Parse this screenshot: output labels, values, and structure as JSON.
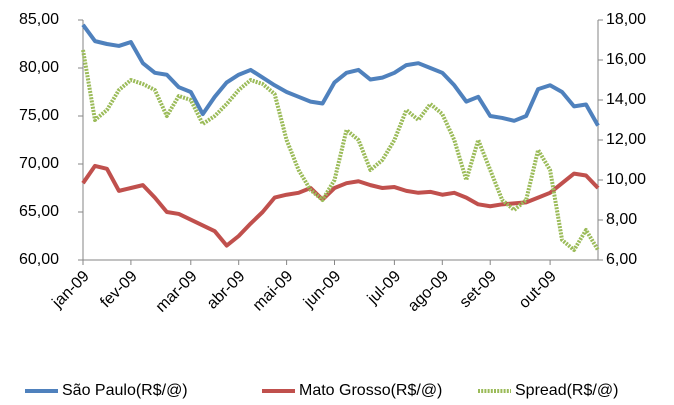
{
  "chart_data": {
    "type": "line",
    "categories": [
      "jan-09",
      null,
      null,
      null,
      "fev-09",
      null,
      null,
      null,
      null,
      "mar-09",
      null,
      null,
      null,
      "abr-09",
      null,
      null,
      null,
      "mai-09",
      null,
      null,
      null,
      "jun-09",
      null,
      null,
      null,
      null,
      "jul-09",
      null,
      null,
      null,
      "ago-09",
      null,
      null,
      null,
      "set-09",
      null,
      null,
      null,
      null,
      "out-09",
      null,
      null,
      null,
      null
    ],
    "series": [
      {
        "name": "São Paulo(R$/@)",
        "color": "#4f81bd",
        "values": [
          84.5,
          82.8,
          82.5,
          82.3,
          82.7,
          80.5,
          79.5,
          79.3,
          78.0,
          77.5,
          75.2,
          77.0,
          78.5,
          79.3,
          79.8,
          79.0,
          78.2,
          77.5,
          77.0,
          76.5,
          76.3,
          78.5,
          79.5,
          79.8,
          78.8,
          79.0,
          79.5,
          80.3,
          80.5,
          80.0,
          79.5,
          78.2,
          76.5,
          77.0,
          75.0,
          74.8,
          74.5,
          75.0,
          77.8,
          78.2,
          77.5,
          76.0,
          76.2,
          74.0
        ]
      },
      {
        "name": "Mato Grosso(R$/@)",
        "color": "#c0504d",
        "values": [
          68.0,
          69.8,
          69.5,
          67.2,
          67.5,
          67.8,
          66.5,
          65.0,
          64.8,
          64.2,
          63.6,
          63.0,
          61.5,
          62.5,
          63.8,
          65.0,
          66.5,
          66.8,
          67.0,
          67.5,
          66.3,
          67.5,
          68.0,
          68.2,
          67.8,
          67.5,
          67.6,
          67.2,
          67.0,
          67.1,
          66.8,
          67.0,
          66.5,
          65.8,
          65.6,
          65.8,
          65.9,
          66.0,
          66.5,
          67.0,
          68.0,
          69.0,
          68.8,
          67.5
        ]
      },
      {
        "name": "Spread(R$/@)",
        "color": "#9bbb59",
        "axis": "y2",
        "linestyle": "dotted",
        "values": [
          16.5,
          13.0,
          13.5,
          14.5,
          15.0,
          14.8,
          14.5,
          13.2,
          14.2,
          14.0,
          12.8,
          13.2,
          13.8,
          14.5,
          15.0,
          14.8,
          14.3,
          12.0,
          10.5,
          9.5,
          9.0,
          10.0,
          12.5,
          12.0,
          10.5,
          11.0,
          12.0,
          13.5,
          13.0,
          13.8,
          13.3,
          12.0,
          10.0,
          12.0,
          10.5,
          9.0,
          8.5,
          9.0,
          11.5,
          10.5,
          7.0,
          6.5,
          7.5,
          6.5
        ]
      }
    ],
    "ylim": [
      60,
      85
    ],
    "yticks": [
      {
        "value": 60,
        "label": "60,00"
      },
      {
        "value": 65,
        "label": "65,00"
      },
      {
        "value": 70,
        "label": "70,00"
      },
      {
        "value": 75,
        "label": "75,00"
      },
      {
        "value": 80,
        "label": "80,00"
      },
      {
        "value": 85,
        "label": "85,00"
      }
    ],
    "y2lim": [
      6,
      18
    ],
    "y2ticks": [
      {
        "value": 6,
        "label": "6,00"
      },
      {
        "value": 8,
        "label": "8,00"
      },
      {
        "value": 10,
        "label": "10,00"
      },
      {
        "value": 12,
        "label": "12,00"
      },
      {
        "value": 14,
        "label": "14,00"
      },
      {
        "value": 16,
        "label": "16,00"
      },
      {
        "value": 18,
        "label": "18,00"
      }
    ],
    "legend": "bottom"
  }
}
